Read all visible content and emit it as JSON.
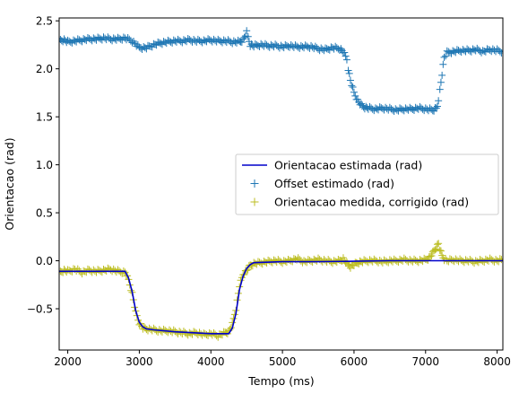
{
  "chart_data": {
    "type": "line",
    "xlabel": "Tempo (ms)",
    "ylabel": "Orientacao (rad)",
    "xlim": [
      1880,
      8080
    ],
    "ylim": [
      -0.93,
      2.53
    ],
    "xticks": [
      2000,
      3000,
      4000,
      5000,
      6000,
      7000,
      8000
    ],
    "xtick_labels": [
      "2000",
      "3000",
      "4000",
      "5000",
      "6000",
      "7000",
      "8000"
    ],
    "yticks": [
      -0.5,
      0.0,
      0.5,
      1.0,
      1.5,
      2.0,
      2.5
    ],
    "ytick_labels": [
      "−0.5",
      "0.0",
      "0.5",
      "1.0",
      "1.5",
      "2.0",
      "2.5"
    ],
    "grid": false,
    "legend_position": "center-right",
    "series": [
      {
        "name": "Orientacao estimada (rad)",
        "kind": "line",
        "color": "#0000cc",
        "x": [
          1880,
          2000,
          2500,
          2800,
          2850,
          2900,
          2950,
          3000,
          3050,
          3100,
          3200,
          3500,
          4000,
          4250,
          4300,
          4350,
          4400,
          4450,
          4500,
          4550,
          4600,
          5000,
          5500,
          6000,
          6500,
          7000,
          7500,
          8080
        ],
        "y": [
          -0.11,
          -0.11,
          -0.11,
          -0.11,
          -0.18,
          -0.32,
          -0.52,
          -0.64,
          -0.69,
          -0.71,
          -0.72,
          -0.74,
          -0.76,
          -0.76,
          -0.7,
          -0.55,
          -0.3,
          -0.16,
          -0.08,
          -0.04,
          -0.02,
          -0.01,
          -0.01,
          -0.005,
          0.0,
          0.0,
          0.0,
          0.0
        ]
      },
      {
        "name": "Offset estimado (rad)",
        "kind": "scatter",
        "marker": "+",
        "color": "#1f77b4",
        "x": [
          1880,
          1950,
          2000,
          2100,
          2200,
          2300,
          2400,
          2500,
          2600,
          2700,
          2800,
          2900,
          3000,
          3100,
          3200,
          3300,
          3400,
          3500,
          3600,
          3700,
          3800,
          3900,
          4000,
          4100,
          4200,
          4300,
          4400,
          4450,
          4500,
          4520,
          4550,
          4600,
          4700,
          4800,
          4900,
          5000,
          5100,
          5200,
          5300,
          5400,
          5500,
          5600,
          5700,
          5800,
          5850,
          5900,
          5920,
          5950,
          6000,
          6050,
          6100,
          6150,
          6200,
          6300,
          6400,
          6500,
          6600,
          6700,
          6800,
          6900,
          7000,
          7100,
          7150,
          7180,
          7200,
          7230,
          7260,
          7300,
          7400,
          7500,
          7600,
          7700,
          7800,
          7900,
          8000,
          8080
        ],
        "y": [
          2.3,
          2.3,
          2.28,
          2.29,
          2.3,
          2.31,
          2.31,
          2.32,
          2.31,
          2.31,
          2.32,
          2.29,
          2.22,
          2.22,
          2.25,
          2.27,
          2.28,
          2.29,
          2.29,
          2.3,
          2.29,
          2.29,
          2.3,
          2.29,
          2.29,
          2.28,
          2.28,
          2.3,
          2.38,
          2.33,
          2.25,
          2.24,
          2.25,
          2.24,
          2.24,
          2.23,
          2.24,
          2.23,
          2.23,
          2.23,
          2.21,
          2.2,
          2.22,
          2.21,
          2.18,
          2.1,
          2.0,
          1.88,
          1.75,
          1.67,
          1.62,
          1.6,
          1.59,
          1.58,
          1.59,
          1.58,
          1.57,
          1.58,
          1.58,
          1.59,
          1.58,
          1.57,
          1.59,
          1.65,
          1.78,
          1.95,
          2.12,
          2.17,
          2.18,
          2.19,
          2.19,
          2.2,
          2.18,
          2.2,
          2.19,
          2.18
        ]
      },
      {
        "name": "Orientacao medida, corrigido (rad)",
        "kind": "scatter",
        "marker": "+",
        "color": "#bcbd22",
        "x": [
          1880,
          1950,
          2000,
          2100,
          2200,
          2300,
          2400,
          2500,
          2600,
          2700,
          2800,
          2850,
          2900,
          2950,
          3000,
          3050,
          3100,
          3200,
          3300,
          3400,
          3500,
          3600,
          3700,
          3800,
          3900,
          4000,
          4100,
          4200,
          4250,
          4300,
          4350,
          4400,
          4450,
          4500,
          4550,
          4600,
          4700,
          4800,
          4900,
          5000,
          5100,
          5200,
          5300,
          5400,
          5500,
          5600,
          5700,
          5800,
          5850,
          5900,
          5950,
          6000,
          6050,
          6100,
          6200,
          6300,
          6400,
          6500,
          6600,
          6700,
          6800,
          6900,
          7000,
          7050,
          7100,
          7150,
          7180,
          7200,
          7230,
          7260,
          7300,
          7400,
          7500,
          7600,
          7700,
          7800,
          7900,
          8000,
          8080
        ],
        "y": [
          -0.12,
          -0.1,
          -0.11,
          -0.09,
          -0.12,
          -0.1,
          -0.11,
          -0.1,
          -0.09,
          -0.11,
          -0.12,
          -0.2,
          -0.34,
          -0.54,
          -0.65,
          -0.7,
          -0.71,
          -0.72,
          -0.73,
          -0.73,
          -0.74,
          -0.75,
          -0.76,
          -0.75,
          -0.77,
          -0.76,
          -0.78,
          -0.75,
          -0.74,
          -0.66,
          -0.5,
          -0.26,
          -0.14,
          -0.1,
          -0.05,
          -0.03,
          -0.02,
          -0.01,
          0.0,
          -0.01,
          0.0,
          0.02,
          -0.01,
          0.0,
          0.01,
          0.0,
          -0.01,
          0.0,
          0.02,
          -0.03,
          -0.06,
          -0.04,
          -0.02,
          -0.01,
          0.0,
          0.0,
          -0.01,
          0.0,
          0.0,
          0.01,
          0.0,
          0.0,
          0.01,
          0.03,
          0.08,
          0.14,
          0.18,
          0.12,
          0.05,
          0.02,
          0.0,
          0.01,
          0.0,
          0.0,
          -0.01,
          0.0,
          0.01,
          0.0,
          0.01
        ]
      }
    ]
  }
}
